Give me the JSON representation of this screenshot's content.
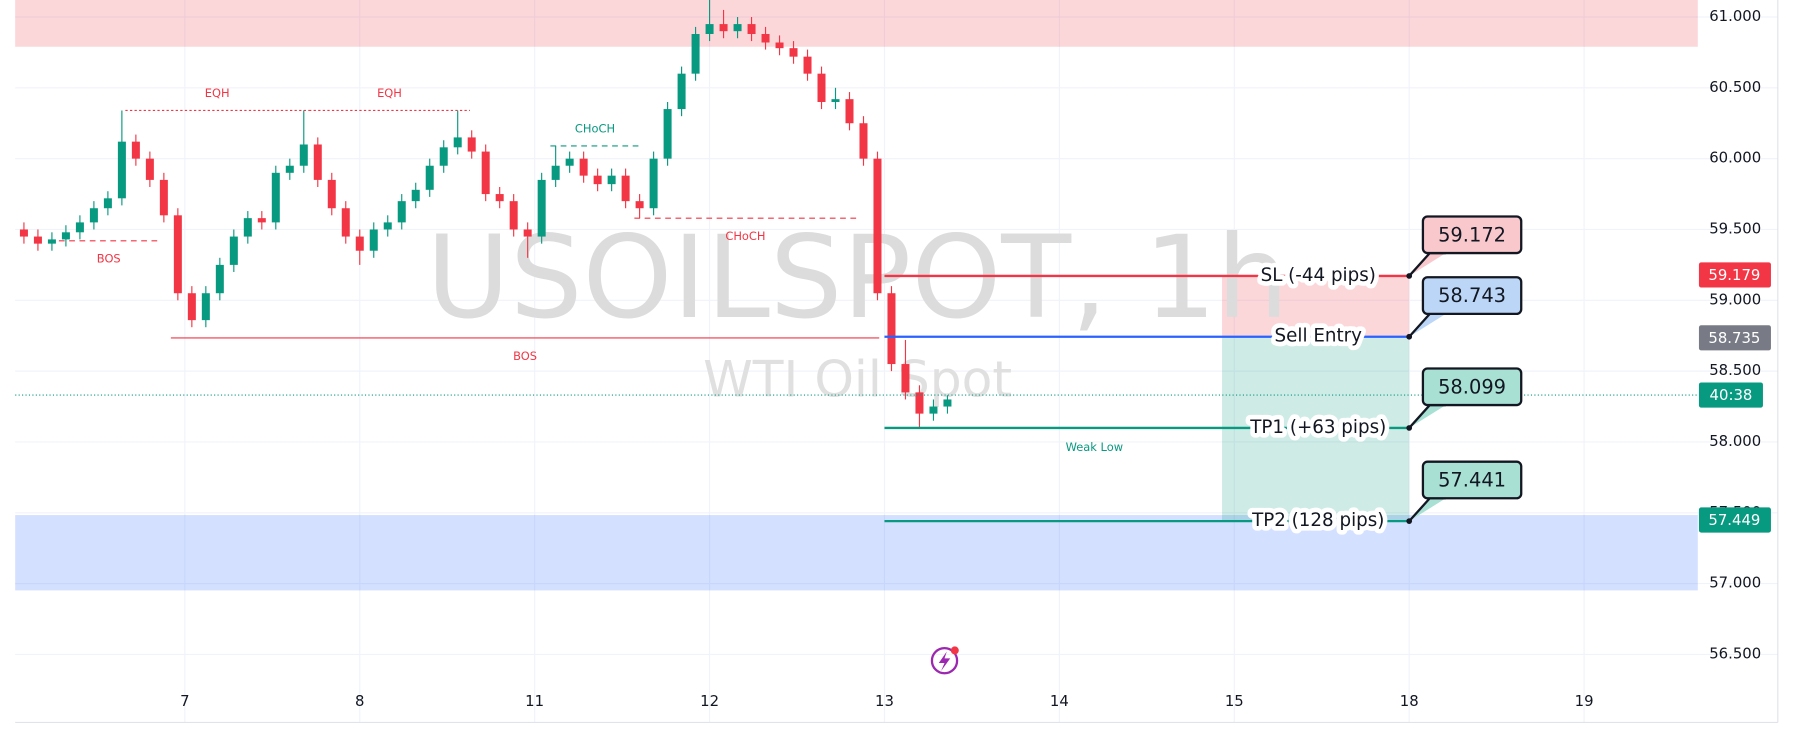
{
  "chart_data": {
    "type": "candlestick",
    "watermark": {
      "title": "USOILSPOT, 1h",
      "subtitle": "WTI Oil Spot"
    },
    "xlim": [
      -0.97,
      8.65
    ],
    "xticks": [
      {
        "value": 0,
        "label": "7"
      },
      {
        "value": 1,
        "label": "8"
      },
      {
        "value": 2,
        "label": "11"
      },
      {
        "value": 3,
        "label": "12"
      },
      {
        "value": 4,
        "label": "13"
      },
      {
        "value": 5,
        "label": "14"
      },
      {
        "value": 6,
        "label": "15"
      },
      {
        "value": 7,
        "label": "18"
      },
      {
        "value": 8,
        "label": "19"
      }
    ],
    "ylim": [
      56.02,
      61.12
    ],
    "yticks": [
      {
        "value": 56.5,
        "label": "56.500"
      },
      {
        "value": 57,
        "label": "57.000"
      },
      {
        "value": 57.5,
        "label": "57.500"
      },
      {
        "value": 58,
        "label": "58.000"
      },
      {
        "value": 58.5,
        "label": "58.500"
      },
      {
        "value": 59,
        "label": "59.000"
      },
      {
        "value": 59.5,
        "label": "59.500"
      },
      {
        "value": 60,
        "label": "60.000"
      },
      {
        "value": 60.5,
        "label": "60.500"
      },
      {
        "value": 61,
        "label": "61.000"
      }
    ],
    "grid": true,
    "up_color": "#089981",
    "down_color": "#f23645",
    "x": [
      -0.92,
      -0.84,
      -0.76,
      -0.68,
      -0.6,
      -0.52,
      -0.44,
      -0.36,
      -0.28,
      -0.2,
      -0.12,
      -0.04,
      0.04,
      0.12,
      0.2,
      0.28,
      0.36,
      0.44,
      0.52,
      0.6,
      0.68,
      0.76,
      0.84,
      0.92,
      1,
      1.08,
      1.16,
      1.24,
      1.32,
      1.4,
      1.48,
      1.56,
      1.64,
      1.72,
      1.8,
      1.88,
      1.96,
      2.04,
      2.12,
      2.2,
      2.28,
      2.36,
      2.44,
      2.52,
      2.6,
      2.68,
      2.76,
      2.84,
      2.92,
      3,
      3.08,
      3.16,
      3.24,
      3.32,
      3.4,
      3.48,
      3.56,
      3.64,
      3.72,
      3.8,
      3.88,
      3.96,
      4.04,
      4.12,
      4.2,
      4.28,
      4.36
    ],
    "open": [
      59.5,
      59.45,
      59.4,
      59.43,
      59.48,
      59.55,
      59.65,
      59.72,
      60.12,
      60,
      59.85,
      59.6,
      59.05,
      58.86,
      59.05,
      59.25,
      59.45,
      59.58,
      59.55,
      59.9,
      59.95,
      60.1,
      59.85,
      59.65,
      59.45,
      59.35,
      59.5,
      59.55,
      59.7,
      59.78,
      59.95,
      60.08,
      60.15,
      60.05,
      59.75,
      59.7,
      59.5,
      59.45,
      59.85,
      59.95,
      60,
      59.88,
      59.82,
      59.88,
      59.7,
      59.65,
      60,
      60.35,
      60.6,
      60.88,
      60.95,
      60.9,
      60.95,
      60.88,
      60.82,
      60.78,
      60.72,
      60.6,
      60.4,
      60.42,
      60.25,
      60,
      59.05,
      58.55,
      58.35,
      58.2,
      58.25
    ],
    "high": [
      59.55,
      59.5,
      59.48,
      59.53,
      59.6,
      59.7,
      59.77,
      60.34,
      60.17,
      60.05,
      59.9,
      59.65,
      59.1,
      59.1,
      59.3,
      59.5,
      59.63,
      59.63,
      59.95,
      60,
      60.34,
      60.15,
      59.9,
      59.7,
      59.5,
      59.55,
      59.6,
      59.75,
      59.83,
      60,
      60.13,
      60.34,
      60.2,
      60.1,
      59.8,
      59.75,
      59.55,
      59.9,
      60.09,
      60.05,
      60.05,
      59.93,
      59.93,
      59.93,
      59.75,
      60.05,
      60.4,
      60.65,
      60.93,
      61.12,
      61.05,
      61,
      61,
      60.93,
      60.87,
      60.83,
      60.77,
      60.65,
      60.5,
      60.47,
      60.3,
      60.05,
      59.1,
      58.72,
      58.4,
      58.3,
      58.33
    ],
    "low": [
      59.4,
      59.35,
      59.35,
      59.38,
      59.43,
      59.5,
      59.6,
      59.67,
      59.95,
      59.8,
      59.55,
      59,
      58.81,
      58.81,
      59,
      59.2,
      59.4,
      59.5,
      59.5,
      59.85,
      59.9,
      59.8,
      59.6,
      59.4,
      59.25,
      59.3,
      59.45,
      59.5,
      59.65,
      59.73,
      59.9,
      60.03,
      60,
      59.7,
      59.65,
      59.45,
      59.3,
      59.4,
      59.8,
      59.9,
      59.83,
      59.77,
      59.77,
      59.65,
      59.58,
      59.6,
      59.95,
      60.3,
      60.55,
      60.83,
      60.85,
      60.85,
      60.83,
      60.77,
      60.73,
      60.67,
      60.55,
      60.35,
      60.35,
      60.2,
      59.95,
      59,
      58.5,
      58.3,
      58.1,
      58.15,
      58.2
    ],
    "close": [
      59.45,
      59.4,
      59.43,
      59.48,
      59.55,
      59.65,
      59.72,
      60.12,
      60,
      59.85,
      59.6,
      59.05,
      58.86,
      59.05,
      59.25,
      59.45,
      59.58,
      59.55,
      59.9,
      59.95,
      60.1,
      59.85,
      59.65,
      59.45,
      59.35,
      59.5,
      59.55,
      59.7,
      59.78,
      59.95,
      60.08,
      60.15,
      60.05,
      59.75,
      59.7,
      59.5,
      59.45,
      59.85,
      59.95,
      60,
      59.88,
      59.82,
      59.88,
      59.7,
      59.65,
      60,
      60.35,
      60.6,
      60.88,
      60.95,
      60.9,
      60.95,
      60.88,
      60.82,
      60.78,
      60.72,
      60.6,
      60.4,
      60.42,
      60.25,
      60,
      59.05,
      58.55,
      58.35,
      58.2,
      58.25,
      58.3
    ],
    "zones": [
      {
        "from": 60.79,
        "to": 61.12,
        "color": "#f23645"
      },
      {
        "from": 56.952,
        "to": 57.484,
        "color": "#2962ff"
      }
    ],
    "annotations": [
      {
        "label": "BOS",
        "level": 59.42,
        "x": [
          -0.72,
          -0.15
        ],
        "color": "#f23645",
        "style": "dashed",
        "text_at": "below"
      },
      {
        "label": "EQH",
        "level": 60.34,
        "x": [
          -0.34,
          0.71
        ],
        "color": "#f23645",
        "style": "dotted",
        "text_at": "above"
      },
      {
        "label": "EQH",
        "level": 60.34,
        "x": [
          0.71,
          1.63
        ],
        "color": "#f23645",
        "style": "dotted",
        "text_at": "above"
      },
      {
        "label": "CHoCH",
        "level": 60.09,
        "x": [
          2.09,
          2.6
        ],
        "color": "#089981",
        "style": "dashed",
        "text_at": "above"
      },
      {
        "label": "CHoCH",
        "level": 59.58,
        "x": [
          2.57,
          3.84
        ],
        "color": "#f23645",
        "style": "dashed",
        "text_at": "below"
      },
      {
        "label": "BOS",
        "level": 58.734,
        "x": [
          -0.08,
          3.97
        ],
        "color": "#f23645",
        "style": "solid",
        "text_at": "below"
      },
      {
        "label": "Weak Low",
        "level": 58.09,
        "x": [
          4.3,
          6.1
        ],
        "color": "#089981",
        "style": "none",
        "text_at": "below"
      }
    ],
    "trade": {
      "x": [
        4,
        7
      ],
      "box_x": [
        5.93,
        7
      ],
      "label_x": 6.48,
      "levels": [
        {
          "label": "SL (-44 pips)",
          "price": 59.172,
          "color": "#f23645",
          "callout_color": "#f8c8cc"
        },
        {
          "label": "Sell Entry",
          "price": 58.743,
          "color": "#2962ff",
          "callout_color": "#bbd6f7"
        },
        {
          "label": "TP1 (+63 pips)",
          "price": 58.099,
          "color": "#089981",
          "callout_color": "#a8e0d4"
        },
        {
          "label": "TP2 (128 pips)",
          "price": 57.441,
          "color": "#089981",
          "callout_color": "#a8e0d4"
        }
      ]
    },
    "price_badges": [
      {
        "value": 59.179,
        "color": "#f23645"
      },
      {
        "value": 58.735,
        "color": "#787b86"
      },
      {
        "value": 57.449,
        "color": "#089981"
      }
    ],
    "countdown": {
      "value": 58.331,
      "label": "40:38",
      "color": "#089981"
    }
  }
}
